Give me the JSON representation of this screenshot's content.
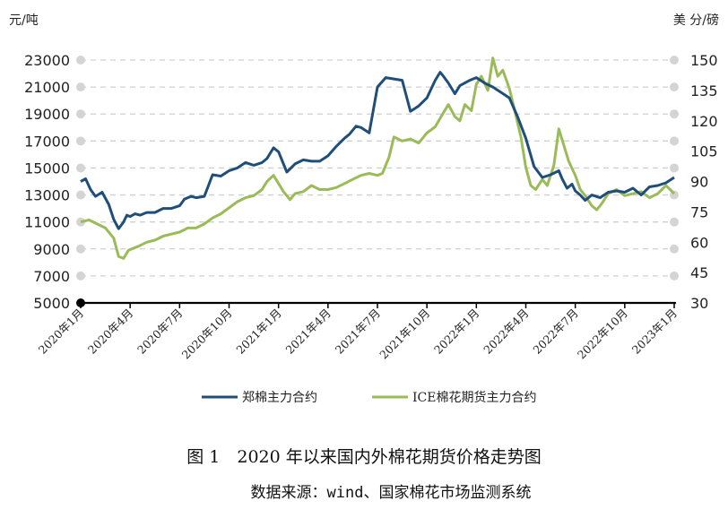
{
  "chart_data": {
    "type": "line",
    "title": "图 1　2020 年以来国内外棉花期货价格走势图",
    "source": "数据来源：wind、国家棉花市场监测系统",
    "y_left_unit": "元/吨",
    "y_right_unit": "美 分/磅",
    "y_left_ticks": [
      "5000",
      "7000",
      "9000",
      "11000",
      "13000",
      "15000",
      "17000",
      "19000",
      "21000",
      "23000"
    ],
    "y_right_ticks": [
      "30",
      "45",
      "60",
      "75",
      "90",
      "105",
      "120",
      "135",
      "150"
    ],
    "ylim_left": [
      5000,
      23000
    ],
    "ylim_right": [
      30,
      150
    ],
    "x_ticks": [
      "2020年1月",
      "2020年4月",
      "2020年7月",
      "2020年10月",
      "2021年1月",
      "2021年4月",
      "2021年7月",
      "2021年10月",
      "2022年1月",
      "2022年4月",
      "2022年7月",
      "2022年10月",
      "2023年1月"
    ],
    "grid": true,
    "legend_position": "bottom",
    "series": [
      {
        "name": "郑棉主力合约",
        "axis": "left",
        "color": "#1f4e79",
        "x": [
          0,
          0.3,
          0.6,
          0.9,
          1.3,
          1.7,
          2.0,
          2.3,
          2.6,
          2.8,
          3.0,
          3.3,
          3.6,
          4.0,
          4.5,
          5.0,
          5.5,
          6.0,
          6.3,
          6.7,
          7.0,
          7.5,
          8.0,
          8.5,
          9.0,
          9.5,
          10.0,
          10.5,
          11.0,
          11.3,
          11.7,
          12.0,
          12.5,
          13.0,
          13.5,
          14.0,
          14.5,
          15.0,
          15.5,
          16.0,
          16.3,
          16.7,
          17.0,
          17.5,
          18.0,
          18.5,
          19.0,
          19.5,
          20.0,
          20.5,
          21.0,
          21.5,
          21.8,
          22.0,
          22.3,
          22.7,
          23.0,
          23.3,
          23.6,
          24.0,
          24.5,
          25.0,
          25.5,
          26.0,
          26.5,
          27.0,
          27.5,
          28.0,
          28.5,
          29.0,
          29.2,
          29.5,
          29.8,
          30.0,
          30.3,
          30.6,
          31.0,
          31.5,
          32.0,
          32.5,
          33.0,
          33.5,
          34.0,
          34.5,
          35.0,
          35.5,
          36.0
        ],
        "y": [
          14000,
          14200,
          13400,
          12900,
          13200,
          12300,
          11200,
          10500,
          11000,
          11500,
          11400,
          11600,
          11500,
          11700,
          11700,
          12000,
          12000,
          12200,
          12700,
          12900,
          12800,
          12900,
          14500,
          14400,
          14800,
          15000,
          15400,
          15200,
          15400,
          15700,
          16500,
          16200,
          14700,
          15300,
          15600,
          15500,
          15500,
          15900,
          16600,
          17200,
          17500,
          18100,
          18000,
          17600,
          21000,
          21700,
          21600,
          21500,
          19200,
          19600,
          20200,
          21500,
          22100,
          21800,
          21300,
          20500,
          21100,
          21300,
          21500,
          21700,
          21300,
          21000,
          20600,
          20200,
          18800,
          17200,
          15100,
          14300,
          14500,
          14800,
          14200,
          13500,
          13800,
          13300,
          13000,
          12600,
          13000,
          12800,
          13200,
          13300,
          13200,
          13500,
          13000,
          13600,
          13700,
          13900,
          14300
        ]
      },
      {
        "name": "ICE棉花期货主力合约",
        "axis": "right",
        "color": "#9bbb59",
        "x": [
          0,
          0.5,
          1.0,
          1.5,
          2.0,
          2.3,
          2.6,
          2.9,
          3.2,
          3.5,
          4.0,
          4.5,
          5.0,
          5.5,
          6.0,
          6.5,
          7.0,
          7.5,
          8.0,
          8.5,
          9.0,
          9.5,
          10.0,
          10.5,
          11.0,
          11.3,
          11.7,
          12.0,
          12.3,
          12.7,
          13.0,
          13.5,
          14.0,
          14.5,
          15.0,
          15.5,
          16.0,
          16.5,
          17.0,
          17.5,
          18.0,
          18.3,
          18.7,
          19.0,
          19.5,
          20.0,
          20.5,
          21.0,
          21.5,
          22.0,
          22.3,
          22.7,
          23.0,
          23.3,
          23.7,
          24.0,
          24.3,
          24.7,
          25.0,
          25.3,
          25.6,
          26.0,
          26.3,
          26.7,
          27.0,
          27.3,
          27.6,
          28.0,
          28.3,
          28.7,
          29.0,
          29.3,
          29.6,
          30.0,
          30.3,
          30.6,
          31.0,
          31.3,
          31.6,
          32.0,
          32.5,
          33.0,
          33.5,
          34.0,
          34.5,
          35.0,
          35.5,
          36.0
        ],
        "y": [
          70,
          71,
          69,
          67,
          62,
          53,
          52,
          56,
          57,
          58,
          60,
          61,
          63,
          64,
          65,
          67,
          67,
          69,
          72,
          74,
          77,
          80,
          82,
          83,
          86,
          90,
          93,
          89,
          85,
          81,
          84,
          85,
          88,
          86,
          86,
          87,
          89,
          91,
          93,
          94,
          93,
          94,
          102,
          112,
          110,
          111,
          109,
          114,
          117,
          124,
          128,
          122,
          120,
          128,
          125,
          138,
          142,
          135,
          151,
          142,
          145,
          136,
          126,
          112,
          97,
          88,
          86,
          91,
          88,
          98,
          116,
          108,
          100,
          93,
          86,
          83,
          78,
          76,
          79,
          84,
          86,
          83,
          84,
          85,
          82,
          84,
          88,
          84
        ]
      }
    ]
  }
}
